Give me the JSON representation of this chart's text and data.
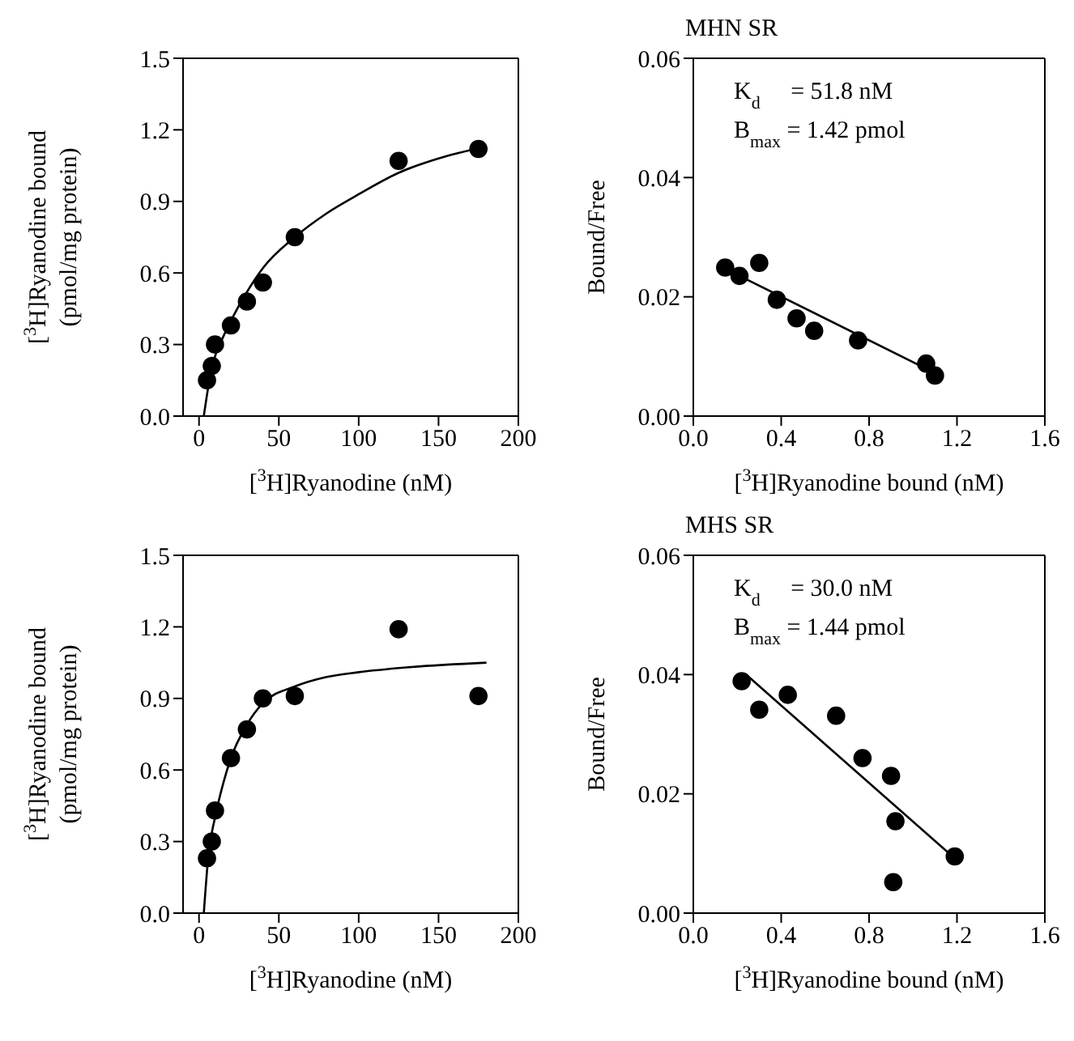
{
  "chart_data": [
    {
      "type": "scatter",
      "xlabel": "[$^{3}$H]Ryanodine (nM)",
      "ylabel": "[$^{3}$H]Ryanodine bound\n(pmol/mg protein)",
      "xlim": [
        -10,
        200
      ],
      "xticks": [
        0,
        50,
        100,
        150,
        200
      ],
      "ylim": [
        0,
        1.5
      ],
      "yticks": [
        {
          "value": 0,
          "label": "0.0"
        },
        0.3,
        0.6,
        0.9,
        1.2,
        1.5
      ],
      "grid": false,
      "series": [
        {
          "color": "#000000",
          "marker": "circle",
          "x": [
            5,
            8,
            10,
            20,
            30,
            40,
            60,
            125,
            175
          ],
          "values": [
            0.15,
            0.21,
            0.3,
            0.38,
            0.48,
            0.56,
            0.75,
            1.07,
            1.12
          ]
        },
        {
          "type": "line",
          "marker": "none",
          "color": "#000000",
          "x": [
            3,
            6,
            10,
            15,
            20,
            30,
            40,
            60,
            80,
            100,
            125,
            150,
            180
          ],
          "values": [
            0,
            0.13,
            0.25,
            0.33,
            0.4,
            0.52,
            0.62,
            0.75,
            0.85,
            0.93,
            1.02,
            1.08,
            1.13
          ]
        }
      ]
    },
    {
      "type": "scatter",
      "title": "MHN SR",
      "xlabel": "[$^{3}$H]Ryanodine bound (nM)",
      "ylabel": "Bound/Free",
      "xlim": [
        0,
        1.6
      ],
      "xticks": [
        {
          "value": 0,
          "label": "0.0"
        },
        0.4,
        0.8,
        1.2,
        1.6
      ],
      "ylim": [
        0,
        0.06
      ],
      "yticks": [
        {
          "value": 0,
          "label": "0.00"
        },
        {
          "value": 0.02,
          "label": "0.02"
        },
        {
          "value": 0.04,
          "label": "0.04"
        },
        {
          "value": 0.06,
          "label": "0.06"
        }
      ],
      "grid": false,
      "annotations": [
        "K$_{d}$     = 51.8 nM",
        "B$_{max}$ = 1.42 pmol"
      ],
      "series": [
        {
          "color": "#000000",
          "marker": "circle",
          "x": [
            0.145,
            0.21,
            0.3,
            0.38,
            0.47,
            0.55,
            0.75,
            1.06,
            1.1
          ],
          "values": [
            0.0249,
            0.0235,
            0.0257,
            0.0195,
            0.0164,
            0.0143,
            0.0127,
            0.0088,
            0.0068
          ]
        },
        {
          "type": "line",
          "marker": "none",
          "color": "#000000",
          "x": [
            0.14,
            1.1
          ],
          "values": [
            0.0248,
            0.0072
          ]
        }
      ]
    },
    {
      "type": "scatter",
      "xlabel": "[$^{3}$H]Ryanodine (nM)",
      "ylabel": "[$^{3}$H]Ryanodine bound\n(pmol/mg protein)",
      "xlim": [
        -10,
        200
      ],
      "xticks": [
        0,
        50,
        100,
        150,
        200
      ],
      "ylim": [
        0,
        1.5
      ],
      "yticks": [
        {
          "value": 0,
          "label": "0.0"
        },
        0.3,
        0.6,
        0.9,
        1.2,
        1.5
      ],
      "grid": false,
      "series": [
        {
          "color": "#000000",
          "marker": "circle",
          "x": [
            5,
            8,
            10,
            20,
            30,
            40,
            60,
            125,
            175
          ],
          "values": [
            0.23,
            0.3,
            0.43,
            0.65,
            0.77,
            0.9,
            0.91,
            1.19,
            0.91
          ]
        },
        {
          "type": "line",
          "marker": "none",
          "color": "#000000",
          "x": [
            3,
            6,
            10,
            15,
            20,
            30,
            40,
            60,
            80,
            100,
            130,
            180
          ],
          "values": [
            0,
            0.25,
            0.4,
            0.54,
            0.65,
            0.79,
            0.88,
            0.95,
            0.99,
            1.01,
            1.03,
            1.05
          ]
        }
      ]
    },
    {
      "type": "scatter",
      "title": "MHS SR",
      "xlabel": "[$^{3}$H]Ryanodine bound (nM)",
      "ylabel": "Bound/Free",
      "xlim": [
        0,
        1.6
      ],
      "xticks": [
        {
          "value": 0,
          "label": "0.0"
        },
        0.4,
        0.8,
        1.2,
        1.6
      ],
      "ylim": [
        0,
        0.06
      ],
      "yticks": [
        {
          "value": 0,
          "label": "0.00"
        },
        {
          "value": 0.02,
          "label": "0.02"
        },
        {
          "value": 0.04,
          "label": "0.04"
        },
        {
          "value": 0.06,
          "label": "0.06"
        }
      ],
      "grid": false,
      "annotations": [
        "K$_{d}$     = 30.0 nM",
        "B$_{max}$ = 1.44 pmol"
      ],
      "series": [
        {
          "color": "#000000",
          "marker": "circle",
          "x": [
            0.22,
            0.3,
            0.43,
            0.65,
            0.77,
            0.9,
            0.92,
            0.91,
            1.19
          ],
          "values": [
            0.0389,
            0.0341,
            0.0366,
            0.0331,
            0.026,
            0.023,
            0.0154,
            0.0052,
            0.0095
          ]
        },
        {
          "type": "line",
          "marker": "none",
          "color": "#000000",
          "x": [
            0.24,
            1.18
          ],
          "values": [
            0.04,
            0.0095
          ]
        }
      ]
    }
  ]
}
